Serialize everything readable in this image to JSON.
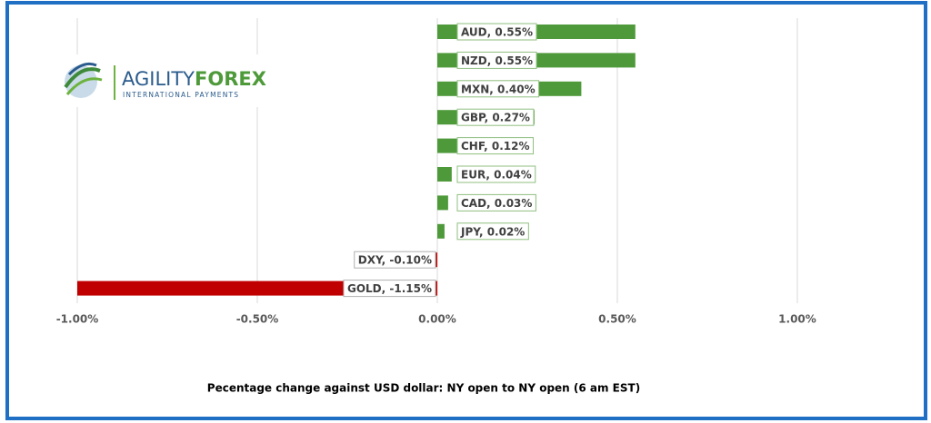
{
  "logo": {
    "name_part1": "AGILITY",
    "name_part2": "FOREX",
    "tagline": "INTERNATIONAL PAYMENTS"
  },
  "chart_data": {
    "type": "hbar",
    "x_label": "Pecentage change against USD dollar: NY open to NY open (6 am EST)",
    "categories": [
      "AUD",
      "NZD",
      "MXN",
      "GBP",
      "CHF",
      "EUR",
      "CAD",
      "JPY",
      "DXY",
      "GOLD"
    ],
    "values": [
      0.55,
      0.55,
      0.4,
      0.27,
      0.12,
      0.04,
      0.03,
      0.02,
      -0.1,
      -1.15
    ],
    "value_labels": [
      "AUD, 0.55%",
      "NZD, 0.55%",
      "MXN, 0.40%",
      "GBP, 0.27%",
      "CHF, 0.12%",
      "EUR, 0.04%",
      "CAD, 0.03%",
      "JPY, 0.02%",
      "DXY, -0.10%",
      "GOLD, -1.15%"
    ],
    "color": "#4e9a3a",
    "negative_color": "#c00000",
    "xlim": [
      -1,
      1.3
    ],
    "xticks": [
      {
        "value": -1,
        "label": "-1.00%"
      },
      {
        "value": -0.5,
        "label": "-0.50%"
      },
      {
        "value": 0,
        "label": "0.00%"
      },
      {
        "value": 0.5,
        "label": "0.50%"
      },
      {
        "value": 1,
        "label": "1.00%"
      }
    ],
    "grid": true
  }
}
